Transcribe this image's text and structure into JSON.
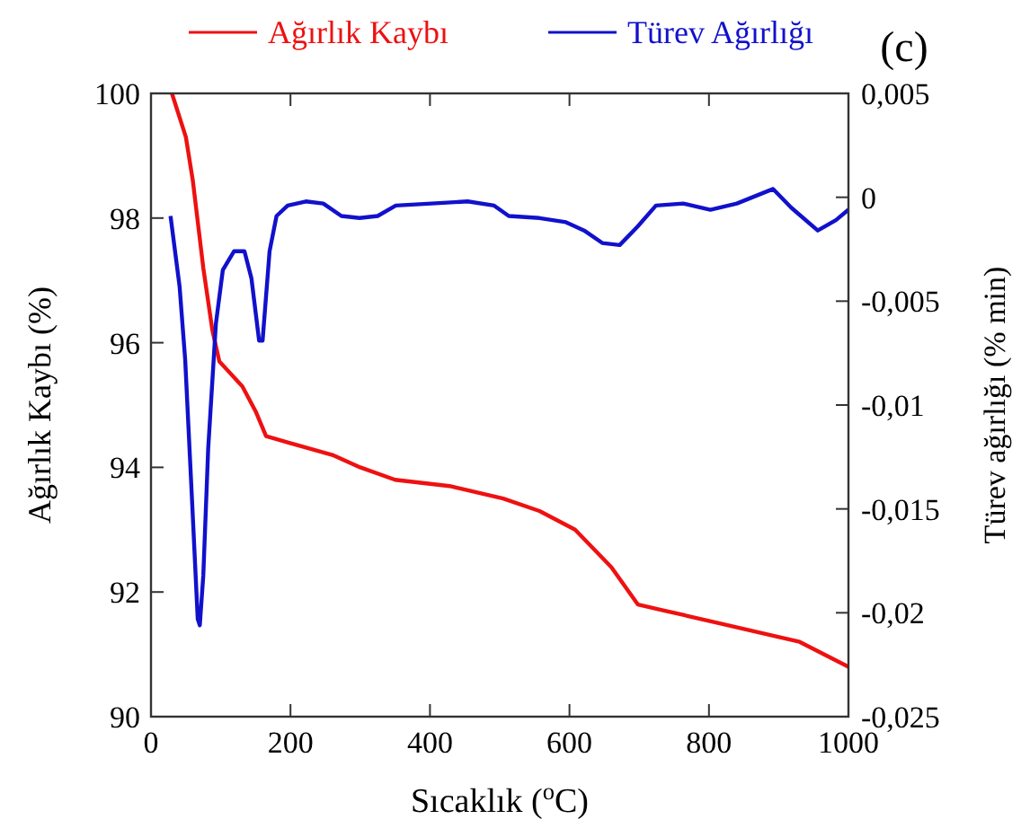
{
  "chart_data": {
    "type": "line",
    "title": "(c)",
    "xlabel": "Sıcaklık ($^{o}$C)",
    "ylabel": "Ağırlık Kaybı  (%)",
    "y2label": "Türev ağırlığı  (% min)",
    "legend": "top",
    "xlim": [
      0,
      1000
    ],
    "xticks": [
      0,
      200,
      400,
      600,
      800,
      1000
    ],
    "ylim": [
      90,
      100
    ],
    "yticks": [
      90,
      92,
      94,
      96,
      98,
      100
    ],
    "y2lim": [
      -0.025,
      0.005
    ],
    "y2ticks": [
      {
        "value": -0.025,
        "label": "-0,025"
      },
      {
        "value": -0.02,
        "label": "-0,02"
      },
      {
        "value": -0.015,
        "label": "-0,015"
      },
      {
        "value": -0.01,
        "label": "-0,01"
      },
      {
        "value": -0.005,
        "label": "-0,005"
      },
      {
        "value": 0,
        "label": "0"
      },
      {
        "value": 0.005,
        "label": "0,005"
      }
    ],
    "series": [
      {
        "name": "Ağırlık Kaybı",
        "color": "#ee1111",
        "x": [
          30,
          50,
          60,
          75,
          88,
          98,
          131,
          150,
          165,
          196,
          260,
          300,
          350,
          428,
          505,
          557,
          608,
          660,
          698,
          737,
          814,
          892,
          930,
          1000
        ],
        "values": [
          100,
          99.3,
          98.6,
          97.2,
          96.2,
          95.7,
          95.3,
          94.9,
          94.5,
          94.4,
          94.2,
          94.0,
          93.8,
          93.7,
          93.5,
          93.3,
          93.0,
          92.4,
          91.8,
          91.7,
          91.5,
          91.3,
          91.2,
          90.8
        ]
      },
      {
        "name": "Türev Ağırlığı",
        "color": "#1111cc",
        "axis": "y2",
        "x": [
          28,
          41,
          49,
          59,
          67,
          70,
          75,
          82,
          93,
          103,
          119,
          134,
          144,
          155,
          160,
          170,
          180,
          196,
          222,
          247,
          273,
          299,
          325,
          351,
          402,
          454,
          492,
          513,
          557,
          595,
          621,
          647,
          672,
          698,
          724,
          763,
          802,
          840,
          892,
          918,
          956,
          982,
          1000
        ],
        "values": [
          -0.0009,
          -0.0043,
          -0.0078,
          -0.0147,
          -0.0203,
          -0.0206,
          -0.0182,
          -0.0121,
          -0.0061,
          -0.0035,
          -0.0026,
          -0.0026,
          -0.0039,
          -0.0069,
          -0.0069,
          -0.0026,
          -0.0009,
          -0.0004,
          -0.0002,
          -0.0003,
          -0.0009,
          -0.001,
          -0.0009,
          -0.0004,
          -0.0003,
          -0.0002,
          -0.0004,
          -0.0009,
          -0.001,
          -0.0012,
          -0.0016,
          -0.0022,
          -0.0023,
          -0.0014,
          -0.0004,
          -0.0003,
          -0.0006,
          -0.0003,
          0.0004,
          -0.0005,
          -0.0016,
          -0.0011,
          -0.0006
        ]
      }
    ]
  }
}
